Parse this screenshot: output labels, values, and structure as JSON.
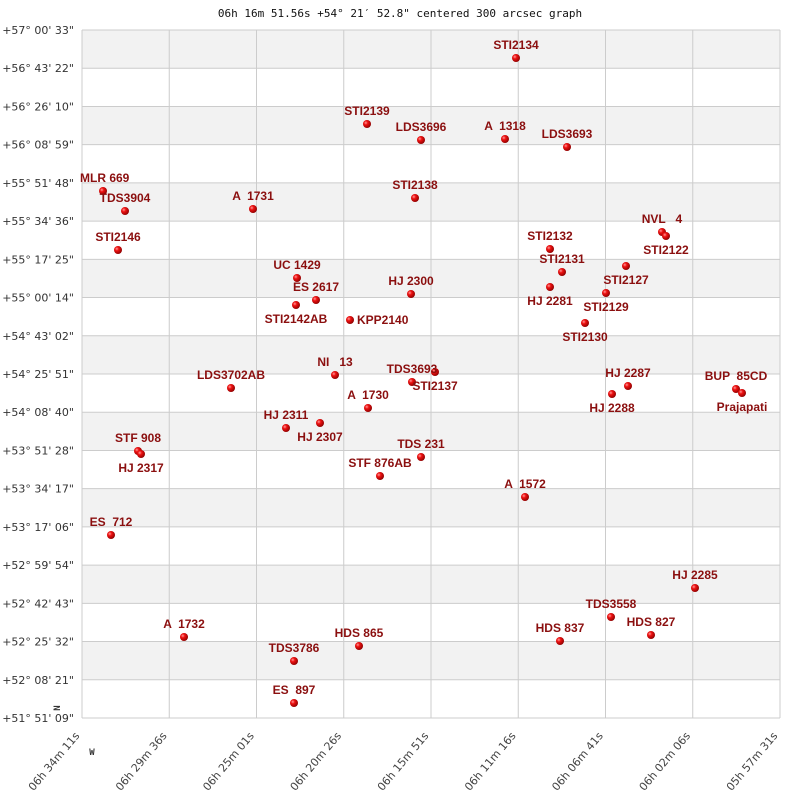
{
  "chart_data": {
    "type": "scatter",
    "title": "06h 16m 51.56s +54° 21′ 52.8\" centered 300 arcsec graph",
    "x_axis": {
      "quantity": "right ascension (hours)",
      "range": [
        6.569722,
        5.958611
      ],
      "reversed": true,
      "tick_labels": [
        "06h 34m 11s",
        "06h 29m 36s",
        "06h 25m 01s",
        "06h 20m 26s",
        "06h 15m 51s",
        "06h 11m 16s",
        "06h 06m 41s",
        "06h 02m 06s",
        "05h 57m 31s"
      ]
    },
    "y_axis": {
      "quantity": "declination (degrees)",
      "range": [
        51.8525,
        57.00917
      ],
      "tick_labels": [
        "+57° 00' 33\"",
        "+56° 43' 22\"",
        "+56° 26' 10\"",
        "+56° 08' 59\"",
        "+55° 51' 48\"",
        "+55° 34' 36\"",
        "+55° 17' 25\"",
        "+55° 00' 14\"",
        "+54° 43' 02\"",
        "+54° 25' 51\"",
        "+54° 08' 40\"",
        "+53° 51' 28\"",
        "+53° 34' 17\"",
        "+53° 17' 06\"",
        "+52° 59' 54\"",
        "+52° 42' 43\"",
        "+52° 25' 32\"",
        "+52° 08' 21\"",
        "+51° 51' 09\""
      ]
    },
    "compass": {
      "north": "N",
      "west": "W"
    },
    "grid": true,
    "band_colors": [
      "#f2f2f2",
      "#ffffff"
    ],
    "grid_color": "#cccccc",
    "label_color": "#8b0f0f",
    "point_color": "#dd0000",
    "points": [
      {
        "label": "STI2134",
        "ra": 6.18974,
        "dec": 56.7993
      },
      {
        "label": "STI2139",
        "ra": 6.3202,
        "dec": 56.3046
      },
      {
        "label": "LDS3696",
        "ra": 6.27292,
        "dec": 56.1847
      },
      {
        "label": "A  1318",
        "ra": 6.19938,
        "dec": 56.1922
      },
      {
        "label": "LDS3693",
        "ra": 6.14509,
        "dec": 56.1322
      },
      {
        "label": "MLR 669",
        "ra": 6.55133,
        "dec": 55.8024
      },
      {
        "label": "TDS3904",
        "ra": 6.53207,
        "dec": 55.6525
      },
      {
        "label": "A  1731",
        "ra": 6.42001,
        "dec": 55.6675
      },
      {
        "label": "STI2138",
        "ra": 6.27817,
        "dec": 55.75
      },
      {
        "label": "NVL   4",
        "ra": 6.06192,
        "dec": 55.4951
      },
      {
        "label": "STI2122",
        "ra": 6.05842,
        "dec": 55.4652
      },
      {
        "label": "STI2146",
        "ra": 6.5382,
        "dec": 55.3602
      },
      {
        "label": "STI2132",
        "ra": 6.15998,
        "dec": 55.3677
      },
      {
        "label": "STI2131",
        "ra": 6.14947,
        "dec": 55.1953
      },
      {
        "label": "HJ 2281",
        "ra": 6.15998,
        "dec": 55.0829
      },
      {
        "label": "STI2127",
        "ra": 6.09344,
        "dec": 55.2403
      },
      {
        "label": "STI2129",
        "ra": 6.11095,
        "dec": 55.0379
      },
      {
        "label": "STI2130",
        "ra": 6.12933,
        "dec": 54.8131
      },
      {
        "label": "UC 1429",
        "ra": 6.38148,
        "dec": 55.1504
      },
      {
        "label": "ES 2617",
        "ra": 6.36485,
        "dec": 54.9855
      },
      {
        "label": "STI2142AB",
        "ra": 6.38236,
        "dec": 54.948
      },
      {
        "label": "KPP2140",
        "ra": 6.33508,
        "dec": 54.8356
      },
      {
        "label": "HJ 2300",
        "ra": 6.28167,
        "dec": 55.0304
      },
      {
        "label": "NI   13",
        "ra": 6.34821,
        "dec": 54.4233
      },
      {
        "label": "TDS3693",
        "ra": 6.2808,
        "dec": 54.3709
      },
      {
        "label": "STI2137",
        "ra": 6.26066,
        "dec": 54.4458
      },
      {
        "label": "LDS3702AB",
        "ra": 6.43927,
        "dec": 54.3259
      },
      {
        "label": "A  1730",
        "ra": 6.31932,
        "dec": 54.176
      },
      {
        "label": "HJ 2311",
        "ra": 6.39111,
        "dec": 54.0261
      },
      {
        "label": "HJ 2307",
        "ra": 6.36135,
        "dec": 54.0636
      },
      {
        "label": "STF 908",
        "ra": 6.52069,
        "dec": 53.8537
      },
      {
        "label": "HJ 2317",
        "ra": 6.51806,
        "dec": 53.8312
      },
      {
        "label": "HJ 2287",
        "ra": 6.09169,
        "dec": 54.3409
      },
      {
        "label": "HJ 2288",
        "ra": 6.10569,
        "dec": 54.2809
      },
      {
        "label": "BUP  85CD",
        "ra": 5.99713,
        "dec": 54.3184
      },
      {
        "label": "Prajapati",
        "ra": 5.99188,
        "dec": 54.2884
      },
      {
        "label": "TDS 231",
        "ra": 6.27292,
        "dec": 53.8087
      },
      {
        "label": "STF 876AB",
        "ra": 6.30882,
        "dec": 53.6663
      },
      {
        "label": "A  1572",
        "ra": 6.18186,
        "dec": 53.5089
      },
      {
        "label": "ES  712",
        "ra": 6.54433,
        "dec": 53.2241
      },
      {
        "label": "HJ 2285",
        "ra": 6.03303,
        "dec": 52.8268
      },
      {
        "label": "TDS3558",
        "ra": 6.10657,
        "dec": 52.6095
      },
      {
        "label": "HDS 827",
        "ra": 6.07155,
        "dec": 52.4746
      },
      {
        "label": "HDS 837",
        "ra": 6.15122,
        "dec": 52.4296
      },
      {
        "label": "A  1732",
        "ra": 6.48042,
        "dec": 52.4596
      },
      {
        "label": "HDS 865",
        "ra": 6.3272,
        "dec": 52.3921
      },
      {
        "label": "TDS3786",
        "ra": 6.38411,
        "dec": 52.2797
      },
      {
        "label": "ES  897",
        "ra": 6.38411,
        "dec": 51.9649
      }
    ]
  }
}
